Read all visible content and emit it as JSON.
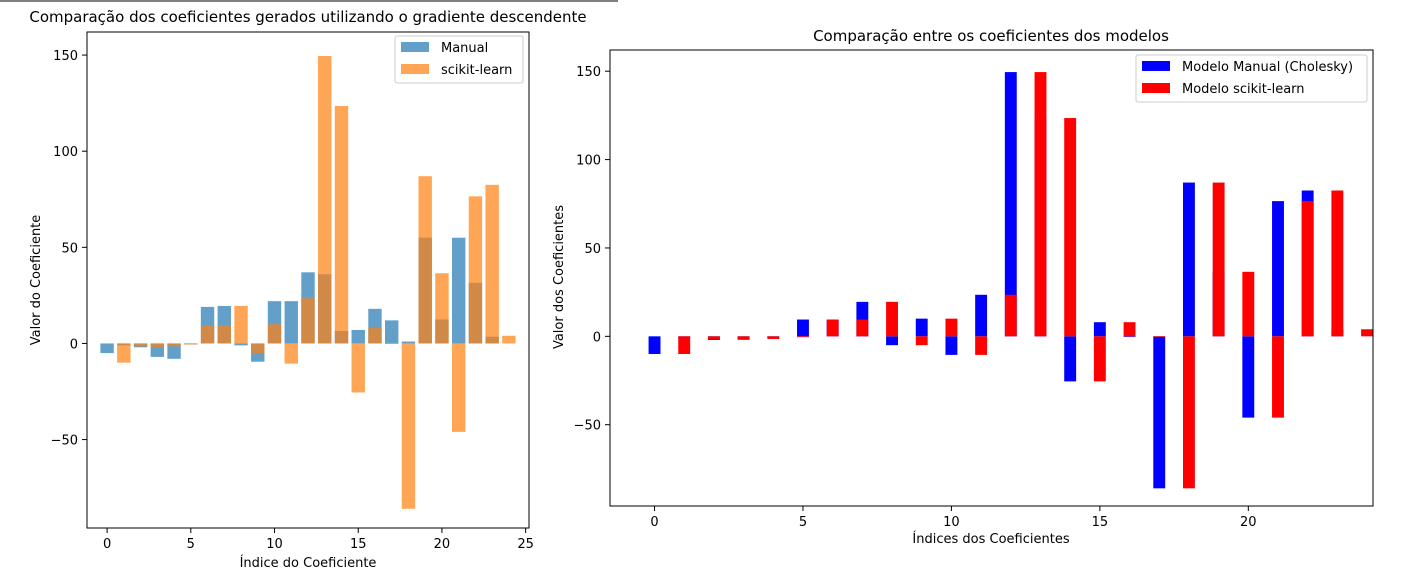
{
  "chart_data": [
    {
      "type": "bar",
      "title": "Comparação dos coeficientes gerados utilizando o gradiente descendente",
      "xlabel": "Índice do Coeficiente",
      "ylabel": "Valor do Coeficiente",
      "xlim": [
        -1.2,
        25.2
      ],
      "ylim": [
        -96,
        162
      ],
      "xticks": [
        0,
        5,
        10,
        15,
        20,
        25
      ],
      "yticks": [
        -50,
        0,
        50,
        100,
        150
      ],
      "ytick_labels": [
        "−50",
        "0",
        "50",
        "100",
        "150"
      ],
      "legend_position": "top-right",
      "overlay": true,
      "series": [
        {
          "name": "Manual",
          "color": "#1f77b4",
          "opacity": 0.7,
          "x": [
            0,
            1,
            2,
            3,
            4,
            5,
            6,
            7,
            8,
            9,
            10,
            11,
            12,
            13,
            14,
            15,
            16,
            17,
            18,
            19,
            20,
            21,
            22,
            23
          ],
          "values": [
            -5,
            -1,
            -2,
            -7,
            -8,
            -0.5,
            19,
            19.5,
            -1,
            -9.5,
            22,
            22,
            37,
            36,
            6.5,
            7,
            18,
            12,
            1,
            55,
            12.5,
            55,
            31.5,
            3.5
          ]
        },
        {
          "name": "scikit-learn",
          "color": "#ff7f0e",
          "opacity": 0.7,
          "x": [
            1,
            2,
            3,
            4,
            5,
            6,
            7,
            8,
            9,
            10,
            11,
            12,
            13,
            14,
            15,
            16,
            17,
            18,
            19,
            20,
            21,
            22,
            23,
            24
          ],
          "values": [
            -10,
            -1.5,
            -2,
            -1.5,
            -0.5,
            9.5,
            9.5,
            19.5,
            -5,
            10,
            -10.5,
            23.5,
            149.5,
            123.5,
            -25.5,
            8,
            0,
            -86,
            87,
            36.5,
            -46,
            76.5,
            82.5,
            4
          ]
        }
      ]
    },
    {
      "type": "bar",
      "title": "Comparação entre os coeficientes dos modelos",
      "xlabel": "Índices dos Coeficientes",
      "ylabel": "Valor dos Coeficientes",
      "xlim": [
        -1.5,
        24.2
      ],
      "ylim": [
        -96,
        162
      ],
      "xticks": [
        0,
        5,
        10,
        15,
        20
      ],
      "yticks": [
        -50,
        0,
        50,
        100,
        150
      ],
      "ytick_labels": [
        "−50",
        "0",
        "50",
        "100",
        "150"
      ],
      "legend_position": "top-right",
      "overlay": false,
      "series": [
        {
          "name": "Modelo Manual (Cholesky)",
          "color": "#0000ff",
          "values": [
            -10,
            -1.5,
            -2,
            -1.5,
            -0.5,
            9.5,
            9.5,
            19.5,
            -5,
            10,
            -10.5,
            23.5,
            149.5,
            123.5,
            -25.5,
            8,
            0,
            -86,
            87,
            36.5,
            -46,
            76.5,
            82.5,
            4
          ]
        },
        {
          "name": "Modelo scikit-learn",
          "color": "#ff0000",
          "values": [
            -10,
            -1.5,
            -2,
            -1.5,
            -0.5,
            9.5,
            9.5,
            19.5,
            -5,
            10,
            -10.5,
            23.5,
            149.5,
            123.5,
            -25.5,
            8,
            0,
            -86,
            87,
            36.5,
            -46,
            76.5,
            82.5,
            4
          ]
        }
      ]
    }
  ]
}
